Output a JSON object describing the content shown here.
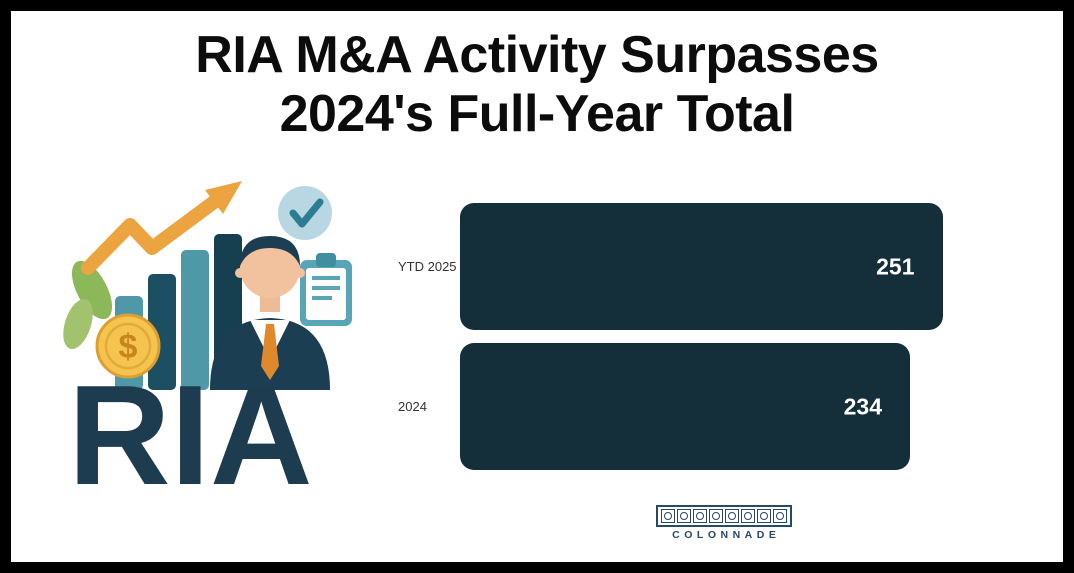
{
  "title": {
    "line1": "RIA M&A Activity Surpasses",
    "line2": "2024's Full-Year Total"
  },
  "illustration": {
    "word": "RIA",
    "icons": [
      "growth-bars",
      "up-arrow",
      "leaves",
      "dollar-coin",
      "businessman",
      "checkmark-badge",
      "clipboard"
    ]
  },
  "chart_data": {
    "type": "bar",
    "orientation": "horizontal",
    "title": "RIA M&A Activity Surpasses 2024's Full-Year Total",
    "categories": [
      "YTD 2025",
      "2024"
    ],
    "values": [
      251,
      234
    ],
    "xlim": [
      0,
      260
    ],
    "grid": false,
    "legend": false,
    "bar_color": "#152f3a",
    "value_text_color": "#ffffff",
    "category_label_color": "#333333"
  },
  "logo": {
    "text": "COLONNADE",
    "cells": 8,
    "color": "#27476b"
  },
  "colors": {
    "frame": "#000000",
    "background": "#ffffff",
    "title_text": "#0c0c0c",
    "ria_wordmark": "#1d3c50",
    "accent_orange": "#eba440",
    "accent_teal": "#4e98a8",
    "accent_dark_teal": "#1d4f62",
    "accent_gold": "#f5c44e",
    "accent_green": "#8cb85a",
    "suit_navy": "#1c3e52"
  }
}
